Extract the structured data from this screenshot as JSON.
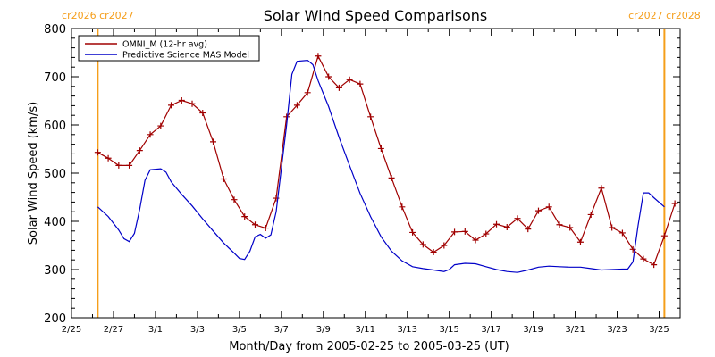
{
  "chart_data": {
    "type": "line",
    "title": "Solar Wind Speed Comparisons",
    "xlabel": "Month/Day from 2005-02-25 to 2005-03-25 (UT)",
    "ylabel": "Solar Wind Speed (km/s)",
    "ylim": [
      200,
      800
    ],
    "xlim": [
      "2005-02-25",
      "2005-03-26"
    ],
    "x_ticks": [
      "2/25",
      "2/27",
      "3/1",
      "3/3",
      "3/5",
      "3/7",
      "3/9",
      "3/11",
      "3/13",
      "3/15",
      "3/17",
      "3/19",
      "3/21",
      "3/23",
      "3/25"
    ],
    "y_ticks": [
      200,
      300,
      400,
      500,
      600,
      700,
      800
    ],
    "legend_position": "top-left",
    "grid": false,
    "rotation_markers": [
      {
        "x": "2005-02-26 06:00",
        "label": "cr2026 cr2027"
      },
      {
        "x": "2005-03-25 06:00",
        "label": "cr2027 cr2028"
      }
    ],
    "series": [
      {
        "name": "OMNI_M (12-hr avg)",
        "color": "#a00000",
        "marker": "+",
        "points": [
          [
            "2005-02-26 06:00",
            543
          ],
          [
            "2005-02-26 18:00",
            531
          ],
          [
            "2005-02-27 06:00",
            516
          ],
          [
            "2005-02-27 18:00",
            516
          ],
          [
            "2005-02-28 06:00",
            547
          ],
          [
            "2005-02-28 18:00",
            580
          ],
          [
            "2005-03-01 06:00",
            598
          ],
          [
            "2005-03-01 18:00",
            641
          ],
          [
            "2005-03-02 06:00",
            651
          ],
          [
            "2005-03-02 18:00",
            644
          ],
          [
            "2005-03-03 06:00",
            625
          ],
          [
            "2005-03-03 18:00",
            565
          ],
          [
            "2005-03-04 06:00",
            488
          ],
          [
            "2005-03-04 18:00",
            445
          ],
          [
            "2005-03-05 06:00",
            410
          ],
          [
            "2005-03-05 18:00",
            393
          ],
          [
            "2005-03-06 06:00",
            386
          ],
          [
            "2005-03-06 18:00",
            448
          ],
          [
            "2005-03-07 06:00",
            617
          ],
          [
            "2005-03-07 18:00",
            641
          ],
          [
            "2005-03-08 06:00",
            667
          ],
          [
            "2005-03-08 18:00",
            743
          ],
          [
            "2005-03-09 06:00",
            700
          ],
          [
            "2005-03-09 18:00",
            677
          ],
          [
            "2005-03-10 06:00",
            694
          ],
          [
            "2005-03-10 18:00",
            685
          ],
          [
            "2005-03-11 06:00",
            617
          ],
          [
            "2005-03-11 18:00",
            551
          ],
          [
            "2005-03-12 06:00",
            490
          ],
          [
            "2005-03-12 18:00",
            430
          ],
          [
            "2005-03-13 06:00",
            377
          ],
          [
            "2005-03-13 18:00",
            352
          ],
          [
            "2005-03-14 06:00",
            336
          ],
          [
            "2005-03-14 18:00",
            350
          ],
          [
            "2005-03-15 06:00",
            378
          ],
          [
            "2005-03-15 18:00",
            379
          ],
          [
            "2005-03-16 06:00",
            361
          ],
          [
            "2005-03-16 18:00",
            374
          ],
          [
            "2005-03-17 06:00",
            394
          ],
          [
            "2005-03-17 18:00",
            388
          ],
          [
            "2005-03-18 06:00",
            406
          ],
          [
            "2005-03-18 18:00",
            384
          ],
          [
            "2005-03-19 06:00",
            422
          ],
          [
            "2005-03-19 18:00",
            430
          ],
          [
            "2005-03-20 06:00",
            393
          ],
          [
            "2005-03-20 18:00",
            387
          ],
          [
            "2005-03-21 06:00",
            357
          ],
          [
            "2005-03-21 18:00",
            414
          ],
          [
            "2005-03-22 06:00",
            469
          ],
          [
            "2005-03-22 18:00",
            387
          ],
          [
            "2005-03-23 06:00",
            376
          ],
          [
            "2005-03-23 18:00",
            342
          ],
          [
            "2005-03-24 06:00",
            322
          ],
          [
            "2005-03-24 18:00",
            310
          ],
          [
            "2005-03-25 06:00",
            370
          ],
          [
            "2005-03-25 18:00",
            437
          ]
        ]
      },
      {
        "name": "Predictive Science MAS Model",
        "color": "#0000c8",
        "points": [
          [
            "2005-02-26 06:00",
            430
          ],
          [
            "2005-02-26 18:00",
            410
          ],
          [
            "2005-02-27 06:00",
            382
          ],
          [
            "2005-02-27 12:00",
            364
          ],
          [
            "2005-02-27 18:00",
            358
          ],
          [
            "2005-02-28 00:00",
            375
          ],
          [
            "2005-02-28 06:00",
            425
          ],
          [
            "2005-02-28 12:00",
            485
          ],
          [
            "2005-02-28 18:00",
            507
          ],
          [
            "2005-03-01 06:00",
            509
          ],
          [
            "2005-03-01 12:00",
            502
          ],
          [
            "2005-03-01 18:00",
            482
          ],
          [
            "2005-03-02 06:00",
            456
          ],
          [
            "2005-03-02 18:00",
            432
          ],
          [
            "2005-03-03 06:00",
            405
          ],
          [
            "2005-03-03 18:00",
            380
          ],
          [
            "2005-03-04 06:00",
            355
          ],
          [
            "2005-03-04 18:00",
            334
          ],
          [
            "2005-03-05 00:00",
            323
          ],
          [
            "2005-03-05 06:00",
            321
          ],
          [
            "2005-03-05 12:00",
            338
          ],
          [
            "2005-03-05 18:00",
            368
          ],
          [
            "2005-03-06 00:00",
            373
          ],
          [
            "2005-03-06 06:00",
            365
          ],
          [
            "2005-03-06 12:00",
            372
          ],
          [
            "2005-03-06 18:00",
            420
          ],
          [
            "2005-03-07 06:00",
            600
          ],
          [
            "2005-03-07 12:00",
            705
          ],
          [
            "2005-03-07 18:00",
            732
          ],
          [
            "2005-03-08 06:00",
            734
          ],
          [
            "2005-03-08 12:00",
            725
          ],
          [
            "2005-03-08 18:00",
            692
          ],
          [
            "2005-03-09 06:00",
            638
          ],
          [
            "2005-03-09 18:00",
            574
          ],
          [
            "2005-03-10 06:00",
            516
          ],
          [
            "2005-03-10 18:00",
            458
          ],
          [
            "2005-03-11 06:00",
            410
          ],
          [
            "2005-03-11 18:00",
            368
          ],
          [
            "2005-03-12 06:00",
            338
          ],
          [
            "2005-03-12 18:00",
            318
          ],
          [
            "2005-03-13 06:00",
            306
          ],
          [
            "2005-03-13 18:00",
            302
          ],
          [
            "2005-03-14 06:00",
            299
          ],
          [
            "2005-03-14 18:00",
            296
          ],
          [
            "2005-03-15 00:00",
            300
          ],
          [
            "2005-03-15 06:00",
            310
          ],
          [
            "2005-03-15 18:00",
            313
          ],
          [
            "2005-03-16 06:00",
            312
          ],
          [
            "2005-03-16 18:00",
            306
          ],
          [
            "2005-03-17 06:00",
            300
          ],
          [
            "2005-03-17 18:00",
            296
          ],
          [
            "2005-03-18 06:00",
            294
          ],
          [
            "2005-03-18 18:00",
            299
          ],
          [
            "2005-03-19 06:00",
            305
          ],
          [
            "2005-03-19 18:00",
            307
          ],
          [
            "2005-03-20 06:00",
            306
          ],
          [
            "2005-03-20 18:00",
            305
          ],
          [
            "2005-03-21 06:00",
            305
          ],
          [
            "2005-03-21 18:00",
            302
          ],
          [
            "2005-03-22 06:00",
            299
          ],
          [
            "2005-03-22 18:00",
            300
          ],
          [
            "2005-03-23 06:00",
            301
          ],
          [
            "2005-03-23 12:00",
            301
          ],
          [
            "2005-03-23 18:00",
            316
          ],
          [
            "2005-03-24 00:00",
            392
          ],
          [
            "2005-03-24 06:00",
            459
          ],
          [
            "2005-03-24 12:00",
            459
          ],
          [
            "2005-03-24 18:00",
            449
          ],
          [
            "2005-03-25 06:00",
            430
          ]
        ]
      }
    ]
  }
}
